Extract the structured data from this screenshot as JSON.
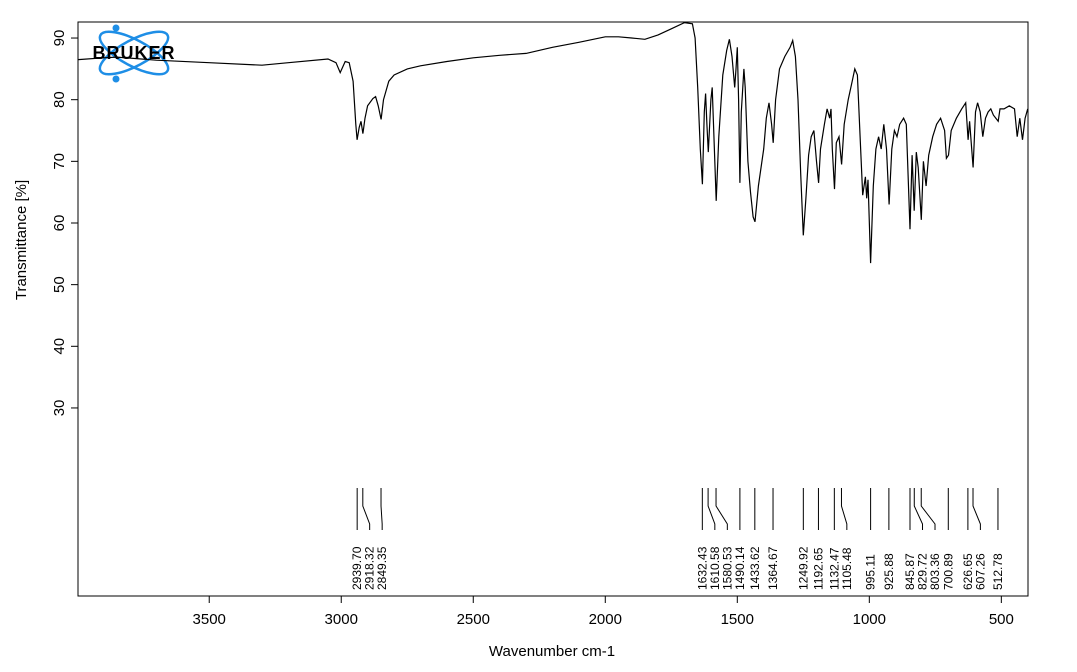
{
  "chart_data": {
    "type": "line",
    "xlabel": "Wavenumber cm-1",
    "ylabel": "Transmittance [%]",
    "logo": "BRUKER",
    "xlim": [
      3997,
      399
    ],
    "ylim": [
      -0.5,
      92.6
    ],
    "xticks": [
      3500,
      3000,
      2500,
      2000,
      1500,
      1000,
      500
    ],
    "yticks": [
      30,
      40,
      50,
      60,
      70,
      80,
      90
    ],
    "color": "#000000",
    "x": [
      3996,
      3900,
      3850,
      3700,
      3500,
      3300,
      3200,
      3050,
      3020,
      3004,
      2985,
      2970,
      2955,
      2945,
      2940,
      2932,
      2925,
      2918,
      2910,
      2900,
      2880,
      2870,
      2860,
      2849,
      2840,
      2820,
      2800,
      2750,
      2700,
      2600,
      2500,
      2400,
      2300,
      2200,
      2100,
      2000,
      1950,
      1900,
      1850,
      1800,
      1750,
      1700,
      1670,
      1660,
      1650,
      1640,
      1632,
      1625,
      1620,
      1615,
      1610,
      1600,
      1595,
      1590,
      1580,
      1570,
      1555,
      1540,
      1530,
      1520,
      1510,
      1505,
      1500,
      1495,
      1490,
      1485,
      1475,
      1470,
      1460,
      1450,
      1440,
      1433,
      1420,
      1400,
      1390,
      1380,
      1370,
      1364,
      1355,
      1340,
      1320,
      1300,
      1290,
      1280,
      1270,
      1260,
      1250,
      1240,
      1230,
      1220,
      1210,
      1200,
      1192,
      1185,
      1170,
      1160,
      1150,
      1145,
      1140,
      1132,
      1125,
      1115,
      1105,
      1095,
      1080,
      1065,
      1055,
      1045,
      1035,
      1025,
      1015,
      1010,
      1005,
      995,
      985,
      975,
      965,
      955,
      945,
      935,
      925,
      915,
      905,
      895,
      885,
      870,
      860,
      846,
      838,
      830,
      822,
      815,
      803,
      795,
      785,
      775,
      760,
      745,
      730,
      715,
      708,
      700,
      690,
      670,
      650,
      635,
      626,
      620,
      607,
      598,
      590,
      580,
      570,
      560,
      550,
      540,
      530,
      512,
      505,
      490,
      470,
      450,
      440,
      430,
      420,
      410,
      400
    ],
    "values": [
      86.5,
      86.8,
      86.9,
      86.4,
      86.0,
      85.6,
      86.0,
      86.6,
      86.0,
      84.4,
      86.2,
      86.0,
      83.0,
      76.0,
      73.5,
      75.5,
      76.5,
      74.5,
      77.0,
      79.0,
      80.2,
      80.5,
      79.0,
      76.8,
      80.0,
      83.0,
      84.0,
      85.0,
      85.5,
      86.2,
      86.8,
      87.2,
      87.5,
      88.5,
      89.3,
      90.2,
      90.2,
      90.0,
      89.8,
      90.5,
      91.5,
      92.5,
      92.3,
      90.0,
      82.0,
      72.0,
      66.3,
      78.0,
      81.0,
      76.0,
      71.5,
      80.0,
      82.0,
      76.0,
      63.6,
      74.0,
      84.0,
      88.0,
      89.8,
      87.0,
      82.0,
      85.0,
      88.5,
      80.0,
      66.5,
      78.0,
      85.0,
      82.0,
      70.0,
      65.0,
      61.0,
      60.2,
      66.0,
      72.0,
      77.0,
      79.5,
      76.0,
      73.0,
      80.0,
      85.0,
      87.0,
      88.5,
      89.6,
      87.0,
      80.0,
      68.0,
      58.0,
      64.0,
      71.0,
      74.0,
      75.0,
      70.0,
      66.5,
      72.0,
      76.0,
      78.5,
      77.0,
      78.5,
      72.0,
      65.5,
      73.0,
      74.0,
      69.5,
      76.0,
      80.0,
      83.0,
      85.0,
      84.0,
      74.0,
      64.5,
      67.5,
      64.0,
      67.0,
      53.5,
      66.0,
      72.0,
      74.0,
      72.0,
      76.0,
      72.0,
      63.0,
      72.0,
      75.0,
      74.0,
      76.0,
      77.0,
      76.0,
      59.0,
      71.0,
      62.0,
      71.5,
      69.0,
      60.5,
      70.0,
      66.0,
      71.0,
      74.0,
      76.0,
      77.0,
      75.0,
      70.5,
      71.0,
      75.0,
      77.0,
      78.5,
      79.5,
      73.5,
      76.5,
      69.0,
      78.0,
      79.5,
      78.0,
      74.0,
      77.0,
      78.0,
      78.5,
      77.5,
      76.5,
      78.5,
      78.5,
      79.0,
      78.5,
      74.0,
      77.0,
      73.5,
      77.0,
      78.5
    ],
    "peaks": [
      {
        "value": 2939.7,
        "label": "2939.70"
      },
      2918.32,
      2849.35,
      1632.43,
      1610.58,
      1580.53,
      1490.14,
      1433.62,
      1364.67,
      1249.92,
      1192.65,
      1132.47,
      1105.48,
      995.11,
      925.88,
      845.87,
      829.72,
      803.36,
      700.89,
      626.65,
      607.26,
      512.78
    ]
  }
}
